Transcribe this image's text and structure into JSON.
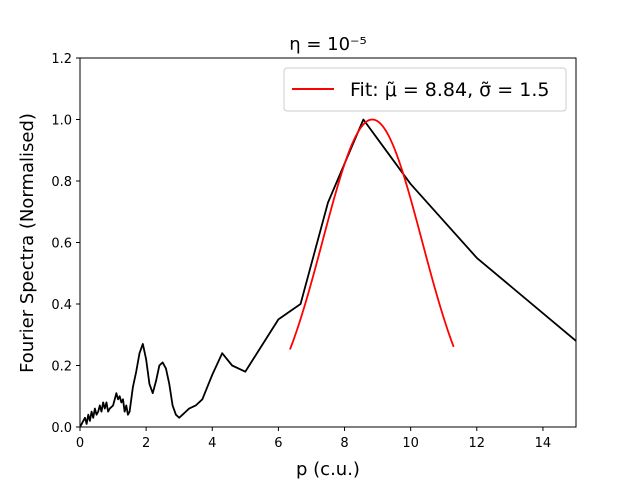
{
  "chart_data": {
    "type": "line",
    "title": "η = 10⁻⁵",
    "xlabel": "p (c.u.)",
    "ylabel": "Fourier Spectra (Normalised)",
    "xlim": [
      0,
      15
    ],
    "ylim": [
      0,
      1.2
    ],
    "xticks": [
      0,
      2,
      4,
      6,
      8,
      10,
      12,
      14
    ],
    "yticks": [
      0.0,
      0.2,
      0.4,
      0.6,
      0.8,
      1.0,
      1.2
    ],
    "xtick_labels": [
      "0",
      "2",
      "4",
      "6",
      "8",
      "10",
      "12",
      "14"
    ],
    "ytick_labels": [
      "0.0",
      "0.2",
      "0.4",
      "0.6",
      "0.8",
      "1.0",
      "1.2"
    ],
    "grid": false,
    "legend_position": "top-right",
    "series": [
      {
        "color": "#000000",
        "x": [
          0.0,
          0.05,
          0.1,
          0.15,
          0.2,
          0.25,
          0.3,
          0.35,
          0.4,
          0.45,
          0.5,
          0.55,
          0.6,
          0.65,
          0.7,
          0.75,
          0.8,
          0.85,
          0.9,
          1.0,
          1.1,
          1.15,
          1.2,
          1.25,
          1.3,
          1.35,
          1.4,
          1.45,
          1.5,
          1.6,
          1.7,
          1.8,
          1.9,
          2.0,
          2.1,
          2.2,
          2.3,
          2.4,
          2.5,
          2.6,
          2.7,
          2.8,
          2.9,
          3.0,
          3.1,
          3.2,
          3.3,
          3.5,
          3.7,
          4.0,
          4.3,
          4.6,
          5.0,
          6.0,
          6.67,
          7.5,
          8.57,
          10.0,
          12.0,
          15.0
        ],
        "y": [
          0.0,
          0.01,
          0.02,
          0.03,
          0.01,
          0.04,
          0.02,
          0.05,
          0.03,
          0.06,
          0.04,
          0.05,
          0.07,
          0.05,
          0.08,
          0.06,
          0.08,
          0.05,
          0.06,
          0.07,
          0.11,
          0.09,
          0.1,
          0.08,
          0.09,
          0.05,
          0.07,
          0.04,
          0.05,
          0.13,
          0.18,
          0.24,
          0.27,
          0.22,
          0.14,
          0.11,
          0.15,
          0.2,
          0.21,
          0.19,
          0.14,
          0.07,
          0.04,
          0.03,
          0.04,
          0.05,
          0.06,
          0.07,
          0.09,
          0.17,
          0.24,
          0.2,
          0.18,
          0.35,
          0.4,
          0.73,
          1.0,
          0.79,
          0.55,
          0.28
        ]
      },
      {
        "name": "Fit: μ̃ = 8.84, σ̃ = 1.5",
        "color": "#ff0000",
        "fit": {
          "mu": 8.84,
          "sigma": 1.5,
          "amplitude": 1.0,
          "x_range": [
            6.35,
            11.3
          ]
        }
      }
    ]
  }
}
